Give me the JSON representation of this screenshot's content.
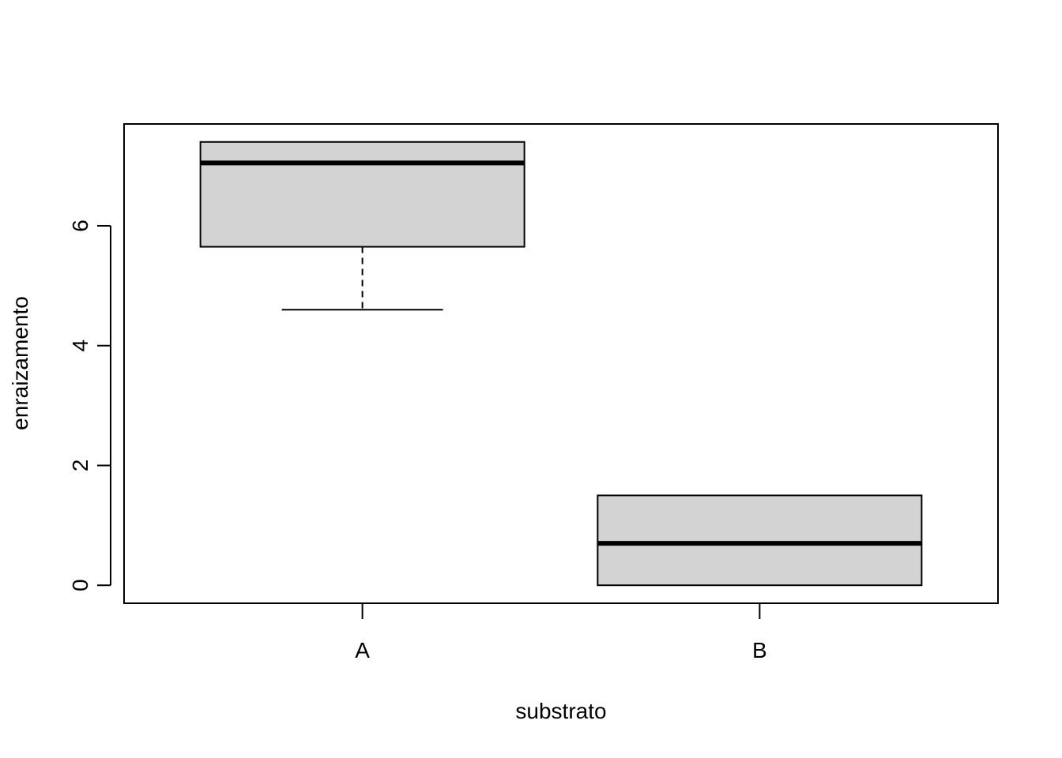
{
  "chart_data": {
    "type": "boxplot",
    "title": "",
    "xlabel": "substrato",
    "ylabel": "enraizamento",
    "categories": [
      "A",
      "B"
    ],
    "boxes": [
      {
        "category": "A",
        "min": 4.6,
        "q1": 5.65,
        "median": 7.05,
        "q3": 7.4,
        "max": 7.4
      },
      {
        "category": "B",
        "min": 0.0,
        "q1": 0.0,
        "median": 0.7,
        "q3": 1.5,
        "max": 1.5
      }
    ],
    "yticks": [
      0,
      2,
      4,
      6
    ],
    "ylim": [
      -0.3,
      7.7
    ],
    "box_fill": "#d3d3d3",
    "line_color": "#000000",
    "grid": false
  }
}
